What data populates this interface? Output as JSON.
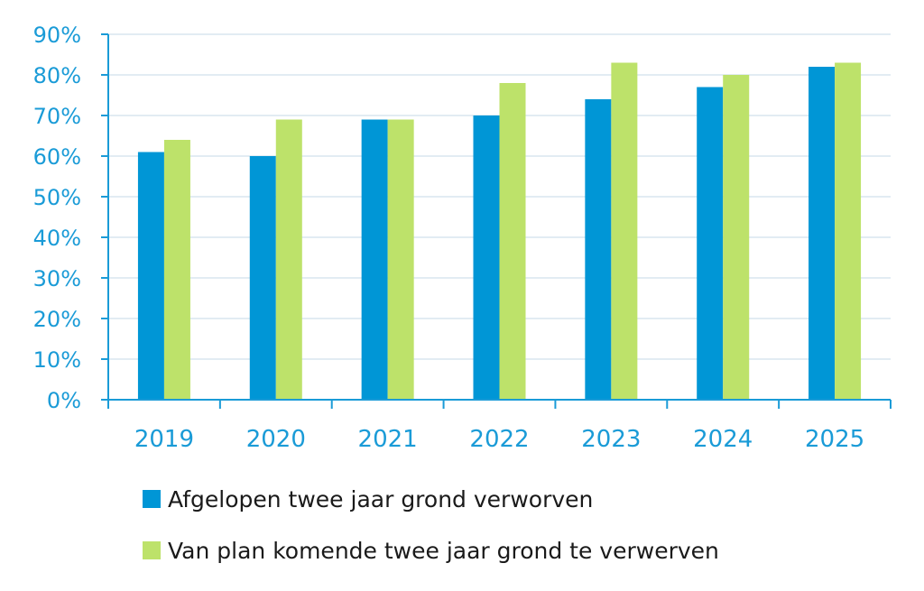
{
  "chart_data": {
    "type": "bar",
    "title": "",
    "xlabel": "",
    "ylabel": "",
    "categories": [
      "2019",
      "2020",
      "2021",
      "2022",
      "2023",
      "2024",
      "2025"
    ],
    "series": [
      {
        "name": "Afgelopen twee jaar grond verworven",
        "color": "#0096d6",
        "values": [
          61,
          60,
          69,
          70,
          74,
          77,
          82
        ]
      },
      {
        "name": "Van plan komende twee jaar grond te verwerven",
        "color": "#bde26a",
        "values": [
          64,
          69,
          69,
          78,
          83,
          80,
          83
        ]
      }
    ],
    "ylim": [
      0,
      90
    ],
    "yticks": [
      "0%",
      "10%",
      "20%",
      "30%",
      "40%",
      "50%",
      "60%",
      "70%",
      "80%",
      "90%"
    ],
    "grid": true,
    "legend_position": "bottom"
  }
}
